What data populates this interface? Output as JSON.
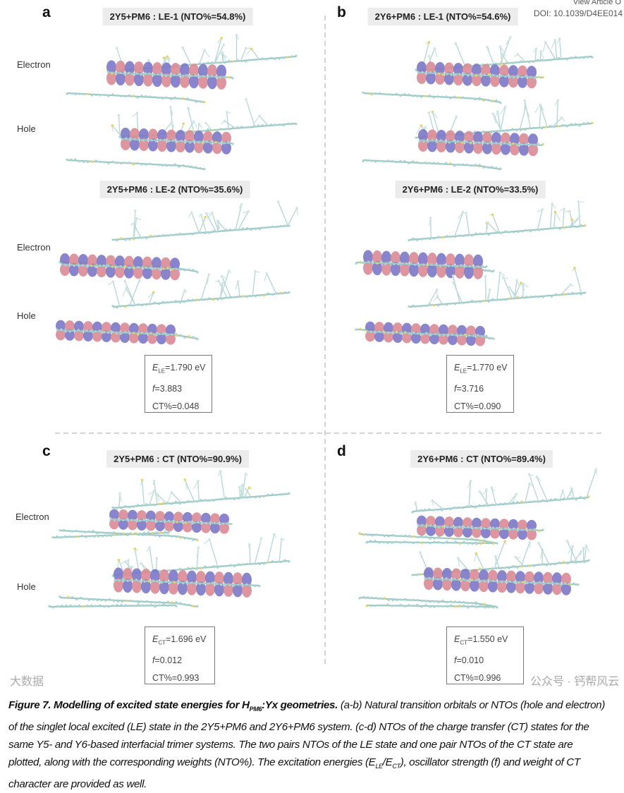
{
  "header": {
    "view_article": "View Article O",
    "doi": "DOI: 10.1039/D4EE014"
  },
  "panels": {
    "a": {
      "label": "a",
      "title1": "2Y5+PM6 : LE-1 (NTO%=54.8%)",
      "title2": "2Y5+PM6 : LE-2 (NTO%=35.6%)",
      "electron": "Electron",
      "hole": "Hole",
      "electron2": "Electron",
      "hole2": "Hole",
      "e_sym": "E",
      "e_sub": "LE",
      "e_val": "=1.790 eV",
      "f_sym": "f",
      "f_val": "=3.883",
      "ct": "CT%=0.048"
    },
    "b": {
      "label": "b",
      "title1": "2Y6+PM6 : LE-1 (NTO%=54.6%)",
      "title2": "2Y6+PM6 : LE-2 (NTO%=33.5%)",
      "e_sym": "E",
      "e_sub": "LE",
      "e_val": "=1.770 eV",
      "f_sym": "f",
      "f_val": "=3.716",
      "ct": "CT%=0.090"
    },
    "c": {
      "label": "c",
      "title1": "2Y5+PM6 : CT (NTO%=90.9%)",
      "electron": "Electron",
      "hole": "Hole",
      "e_sym": "E",
      "e_sub": "CT",
      "e_val": "=1.696 eV",
      "f_sym": "f",
      "f_val": "=0.012",
      "ct": "CT%=0.993"
    },
    "d": {
      "label": "d",
      "title1": "2Y6+PM6 : CT (NTO%=89.4%)",
      "e_sym": "E",
      "e_sub": "CT",
      "e_val": "=1.550 eV",
      "f_sym": "f",
      "f_val": "=0.010",
      "ct": "CT%=0.996"
    }
  },
  "caption": {
    "bold1": "Figure 7. Modelling of excited state energies for H",
    "bold_sub": "PM6",
    "bold2": ":Yx geometries.",
    "t1": " (a-b) Natural transition orbitals or NTOs (hole and electron) of the singlet local excited (LE) state in the 2Y5+PM6 and 2Y6+PM6 system. (c-d) NTOs of the charge transfer (CT) states for the same Y5- and Y6-based interfacial trimer systems. The two pairs NTOs of the LE state and one pair NTOs of the CT state are plotted, along with the corresponding weights (NTO%). The excitation energies (E",
    "sub1": "LE",
    "t2": "/E",
    "sub2": "CT",
    "t3": "), oscillator strength (f) and weight of CT character are provided as well."
  },
  "watermark": {
    "right": "公众号 · 钙帮风云",
    "left": "大数据"
  },
  "colors": {
    "lobe_pos": "#d98b96",
    "lobe_neg": "#7b78c8",
    "atom": "#a9d3d0",
    "sulfur": "#e6d36a",
    "divider": "#bbbbbb"
  }
}
